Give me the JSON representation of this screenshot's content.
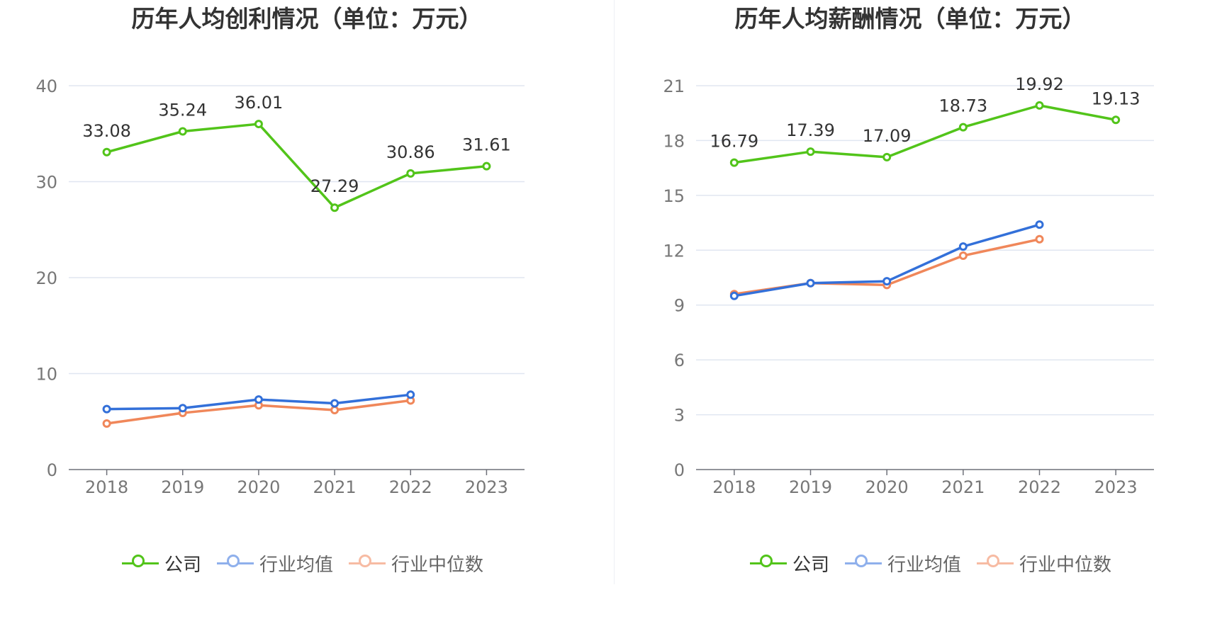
{
  "chart_data": [
    {
      "type": "line",
      "title": "历年人均创利情况（单位：万元）",
      "categories": [
        "2018",
        "2019",
        "2020",
        "2021",
        "2022",
        "2023"
      ],
      "ylim": [
        0,
        40
      ],
      "yticks": [
        0,
        10,
        20,
        30,
        40
      ],
      "grid": true,
      "legend_position": "bottom",
      "series": [
        {
          "name": "公司",
          "color": "#52c41a",
          "values": [
            33.08,
            35.24,
            36.01,
            27.29,
            30.86,
            31.61
          ],
          "labels": [
            "33.08",
            "35.24",
            "36.01",
            "27.29",
            "30.86",
            "31.61"
          ]
        },
        {
          "name": "行业均值",
          "color": "#3370d9",
          "legend_color": "#8fb0ec",
          "values": [
            6.3,
            6.4,
            7.3,
            6.9,
            7.8,
            null
          ]
        },
        {
          "name": "行业中位数",
          "color": "#f0875a",
          "legend_color": "#f7bba3",
          "values": [
            4.8,
            5.9,
            6.7,
            6.2,
            7.2,
            null
          ]
        }
      ]
    },
    {
      "type": "line",
      "title": "历年人均薪酬情况（单位：万元）",
      "categories": [
        "2018",
        "2019",
        "2020",
        "2021",
        "2022",
        "2023"
      ],
      "ylim": [
        0,
        21
      ],
      "yticks": [
        0,
        3,
        6,
        9,
        12,
        15,
        18,
        21
      ],
      "grid": true,
      "legend_position": "bottom",
      "series": [
        {
          "name": "公司",
          "color": "#52c41a",
          "values": [
            16.79,
            17.39,
            17.09,
            18.73,
            19.92,
            19.13
          ],
          "labels": [
            "16.79",
            "17.39",
            "17.09",
            "18.73",
            "19.92",
            "19.13"
          ]
        },
        {
          "name": "行业均值",
          "color": "#3370d9",
          "legend_color": "#8fb0ec",
          "values": [
            9.5,
            10.2,
            10.3,
            12.2,
            13.4,
            null
          ]
        },
        {
          "name": "行业中位数",
          "color": "#f0875a",
          "legend_color": "#f7bba3",
          "values": [
            9.6,
            10.2,
            10.1,
            11.7,
            12.6,
            null
          ]
        }
      ]
    }
  ]
}
